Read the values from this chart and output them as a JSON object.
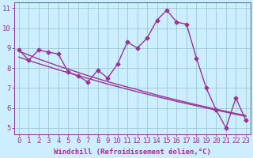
{
  "x": [
    0,
    1,
    2,
    3,
    4,
    5,
    6,
    7,
    8,
    9,
    10,
    11,
    12,
    13,
    14,
    15,
    16,
    17,
    18,
    19,
    20,
    21,
    22,
    23
  ],
  "y_data": [
    8.9,
    8.4,
    8.9,
    8.8,
    8.7,
    7.8,
    7.6,
    7.3,
    7.9,
    7.5,
    8.2,
    9.3,
    9.0,
    9.5,
    10.4,
    10.9,
    10.3,
    10.2,
    8.5,
    7.0,
    5.9,
    5.0,
    6.5,
    5.4
  ],
  "trend1": [
    8.85,
    8.65,
    8.45,
    8.28,
    8.1,
    7.95,
    7.78,
    7.62,
    7.47,
    7.32,
    7.18,
    7.05,
    6.92,
    6.78,
    6.65,
    6.52,
    6.4,
    6.28,
    6.16,
    6.05,
    5.94,
    5.83,
    5.72,
    5.62
  ],
  "trend2": [
    8.55,
    8.38,
    8.22,
    8.07,
    7.91,
    7.77,
    7.62,
    7.48,
    7.34,
    7.2,
    7.07,
    6.94,
    6.81,
    6.69,
    6.57,
    6.45,
    6.33,
    6.22,
    6.11,
    6.0,
    5.89,
    5.79,
    5.68,
    5.58
  ],
  "line_color": "#993399",
  "bg_color": "#cceeff",
  "grid_color": "#99cccc",
  "xlabel": "Windchill (Refroidissement éolien,°C)",
  "xlim": [
    -0.5,
    23.5
  ],
  "ylim": [
    4.7,
    11.3
  ],
  "yticks": [
    5,
    6,
    7,
    8,
    9,
    10,
    11
  ],
  "xticks": [
    0,
    1,
    2,
    3,
    4,
    5,
    6,
    7,
    8,
    9,
    10,
    11,
    12,
    13,
    14,
    15,
    16,
    17,
    18,
    19,
    20,
    21,
    22,
    23
  ],
  "marker": "D",
  "markersize": 2.5,
  "linewidth": 1.0,
  "label_fontsize": 6.5
}
